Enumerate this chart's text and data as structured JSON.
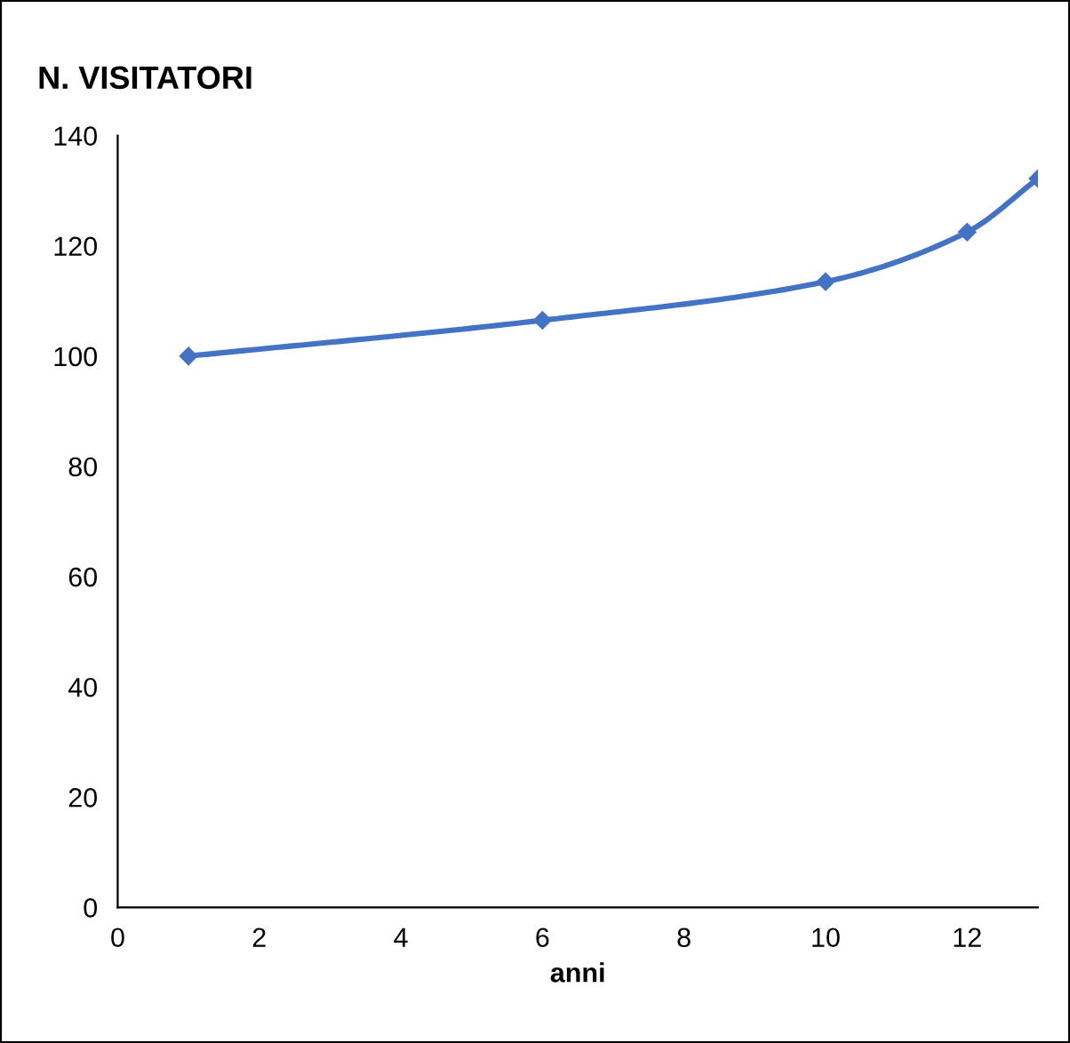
{
  "chart_data": {
    "type": "line",
    "title": "N. VISITATORI",
    "xlabel": "anni",
    "x": [
      1,
      6,
      10,
      12,
      13
    ],
    "series": [
      {
        "color": "#4472c4",
        "values": [
          100,
          106.5,
          113.5,
          122.5,
          132.2
        ]
      }
    ],
    "xlim": [
      0,
      13
    ],
    "xticks": [
      0,
      2,
      4,
      6,
      8,
      10,
      12
    ],
    "ylim": [
      0,
      140
    ],
    "yticks": [
      0,
      20,
      40,
      60,
      80,
      100,
      120,
      140
    ],
    "grid": false,
    "legend": false,
    "marker": "diamond",
    "line_style": "solid"
  }
}
